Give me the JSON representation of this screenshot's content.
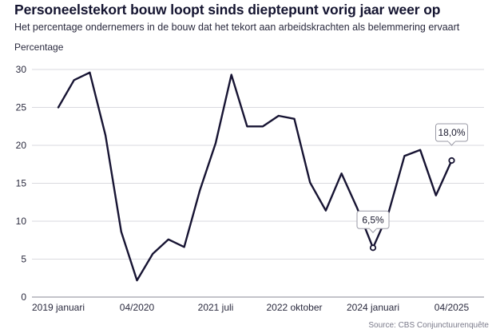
{
  "chart_data": {
    "type": "line",
    "title": "Personeelstekort bouw loopt sinds dieptepunt vorig jaar weer op",
    "subtitle": "Het percentage ondernemers in de bouw dat het tekort aan arbeidskrachten als belemmering ervaart",
    "ylabel": "Percentage",
    "xlabel": "",
    "source": "Source: CBS Conjunctuurenquête",
    "ylim": [
      0,
      30
    ],
    "y_ticks": [
      "0",
      "5",
      "10",
      "15",
      "20",
      "25",
      "30"
    ],
    "x_tick_labels": [
      "2019 januari",
      "04/2020",
      "2021 juli",
      "2022 oktober",
      "2024 januari",
      "04/2025"
    ],
    "grid": "horizontal",
    "line_color": "#171433",
    "series": [
      {
        "x": [
          "2019-01",
          "2019-04",
          "2019-07",
          "2019-10",
          "2020-01",
          "2020-04",
          "2020-07",
          "2020-10",
          "2021-01",
          "2021-04",
          "2021-07",
          "2021-10",
          "2022-01",
          "2022-04",
          "2022-07",
          "2022-10",
          "2023-01",
          "2023-04",
          "2023-07",
          "2023-10",
          "2024-01",
          "2024-04",
          "2024-07",
          "2024-10",
          "2025-01",
          "2025-04"
        ],
        "values": [
          25.0,
          28.6,
          29.6,
          21.3,
          8.6,
          2.2,
          5.7,
          7.6,
          6.6,
          14.1,
          20.3,
          29.3,
          22.5,
          22.5,
          23.9,
          23.5,
          15.1,
          11.4,
          16.3,
          11.7,
          6.5,
          11.2,
          18.6,
          19.4,
          13.4,
          18.0
        ]
      }
    ],
    "annotations": [
      {
        "label": "6,5%",
        "index": 20
      },
      {
        "label": "18,0%",
        "index": 25
      }
    ]
  }
}
